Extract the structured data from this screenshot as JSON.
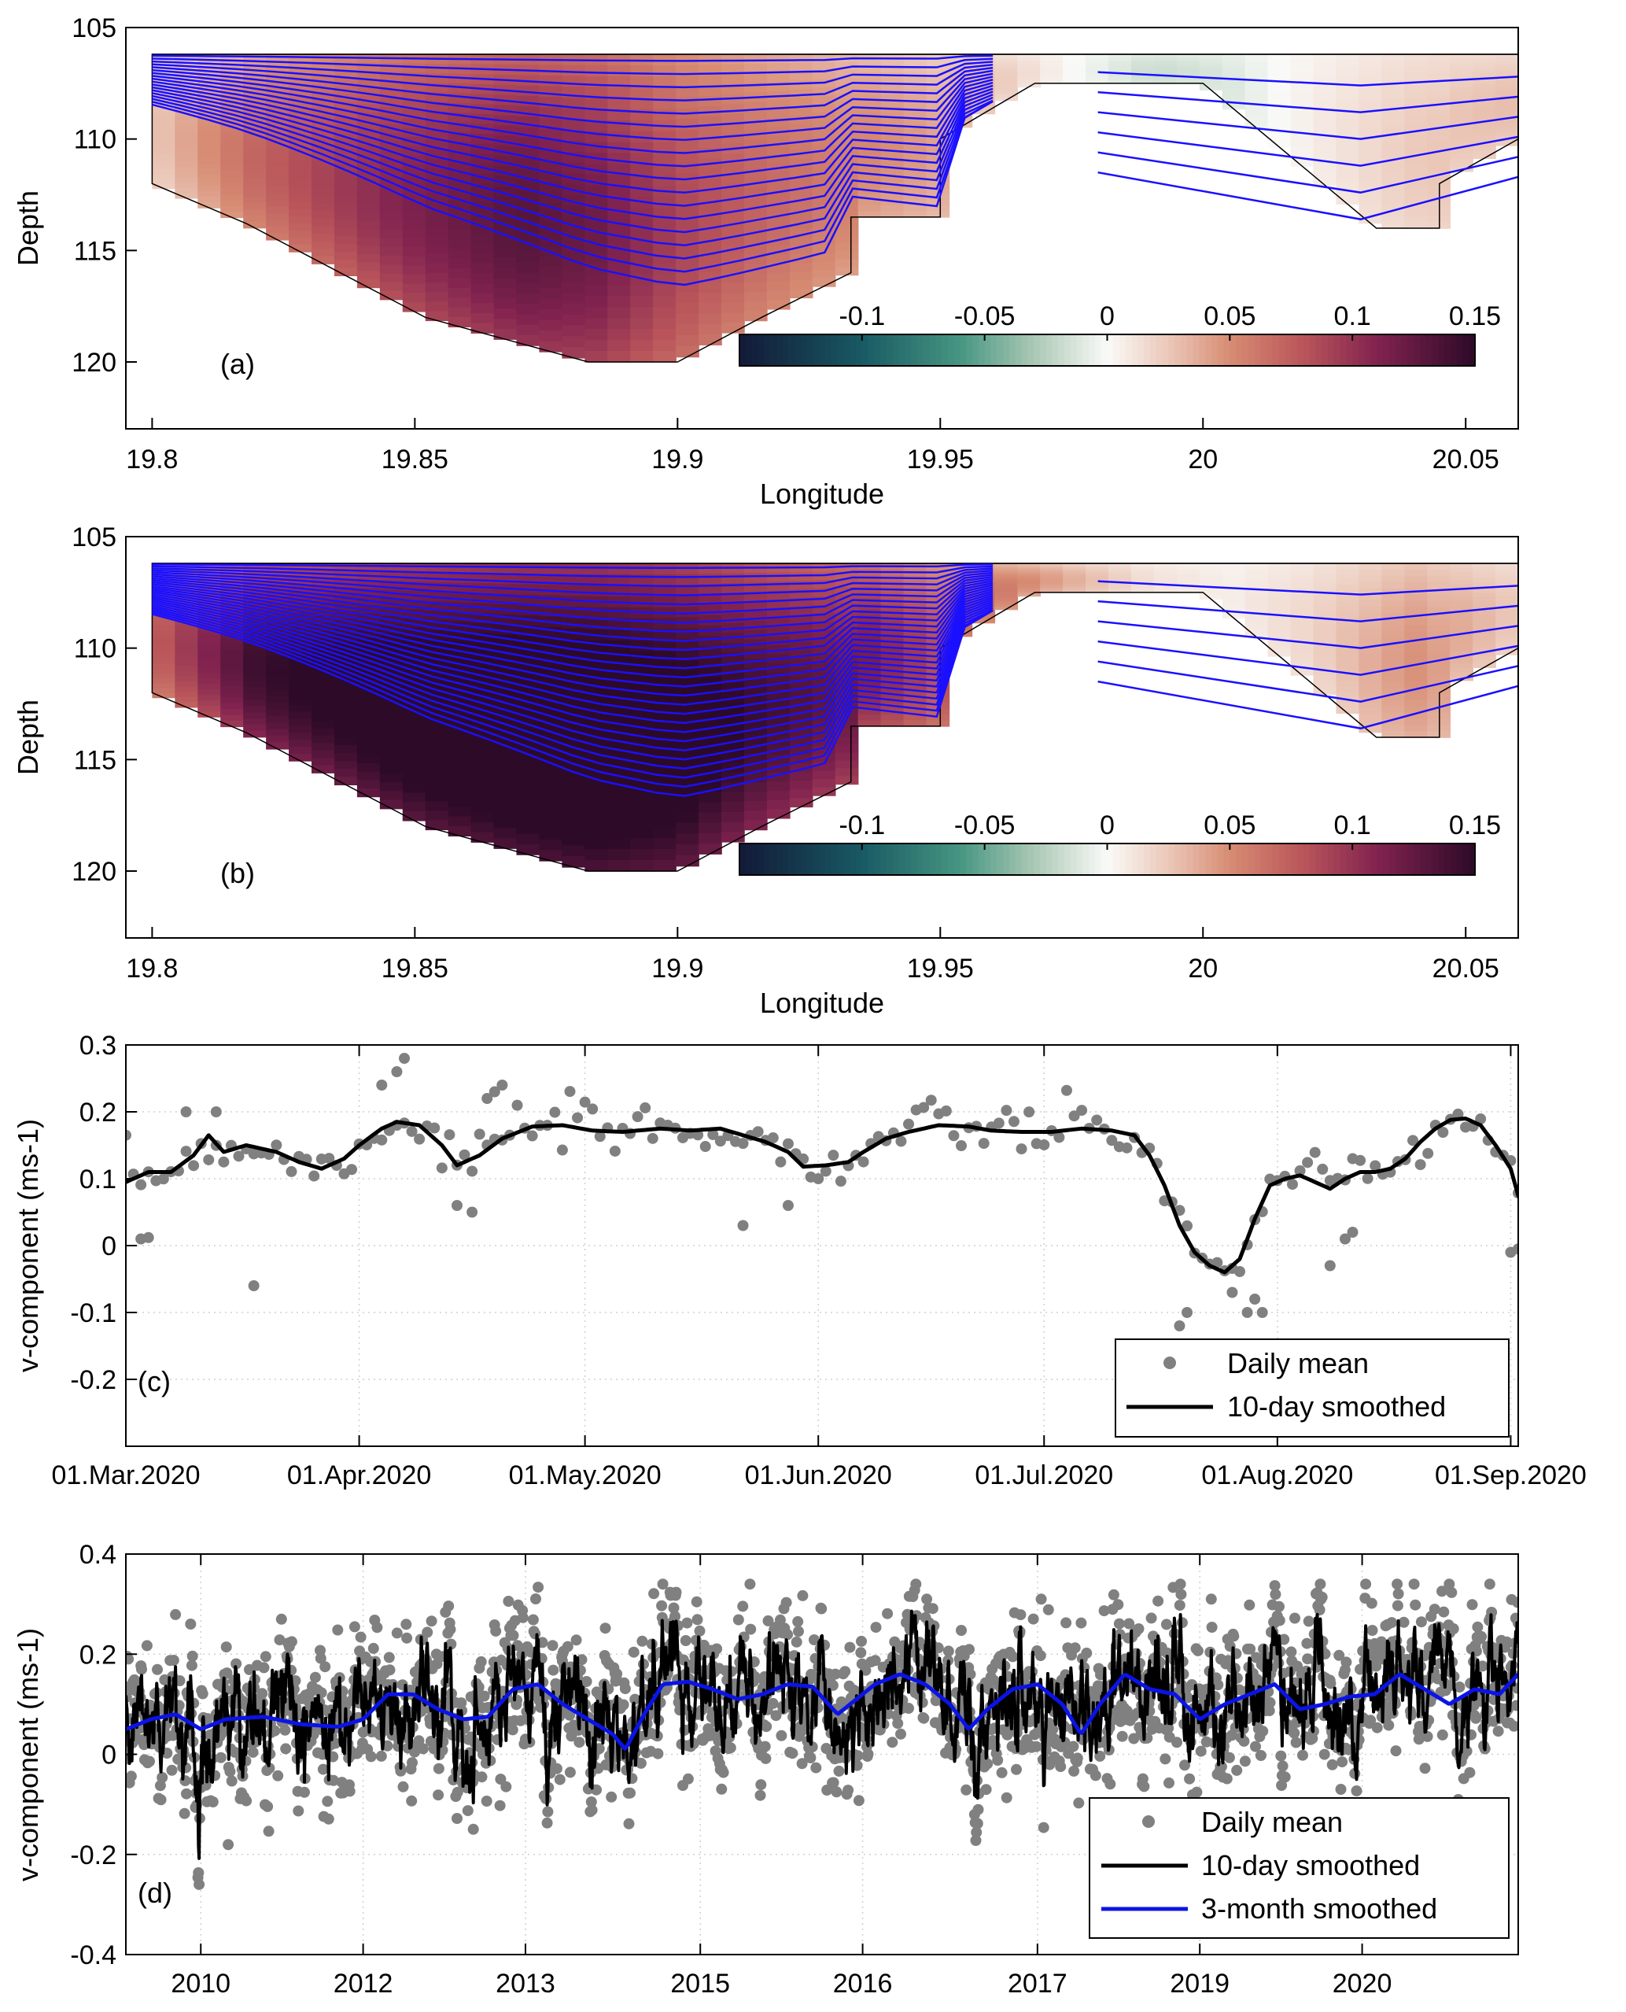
{
  "colors": {
    "contour_line": "#1a10ff",
    "smooth10": "#000000",
    "smooth3m": "#0a14e6",
    "daily": "#808080",
    "grid": "#d0d0d0"
  },
  "chart_data": [
    {
      "id": "a",
      "type": "heatmap",
      "panel_label": "(a)",
      "xlabel": "Longitude",
      "ylabel": "Depth",
      "xlim": [
        19.795,
        20.06
      ],
      "ylim": [
        105,
        123
      ],
      "xticks": [
        "19.8",
        "19.85",
        "19.9",
        "19.95",
        "20",
        "20.05"
      ],
      "xtick_values": [
        19.8,
        19.85,
        19.9,
        19.95,
        20.0,
        20.05
      ],
      "yticks": [
        "105",
        "110",
        "115",
        "120"
      ],
      "ytick_values": [
        105,
        110,
        115,
        120
      ],
      "colorbar": {
        "range": [
          -0.15,
          0.15
        ],
        "ticks": [
          "-0.1",
          "-0.05",
          "0",
          "0.05",
          "0.1",
          "0.15"
        ],
        "tick_values": [
          -0.1,
          -0.05,
          0,
          0.05,
          0.1,
          0.15
        ]
      },
      "bathymetry": [
        [
          19.8,
          112
        ],
        [
          19.818,
          113.8
        ],
        [
          19.852,
          118
        ],
        [
          19.883,
          120
        ],
        [
          19.9,
          120
        ],
        [
          19.916,
          118
        ],
        [
          19.933,
          116
        ],
        [
          19.933,
          113.5
        ],
        [
          19.95,
          113.5
        ],
        [
          19.95,
          110
        ],
        [
          19.968,
          107.5
        ],
        [
          20.0,
          107.5
        ],
        [
          20.033,
          114
        ],
        [
          20.045,
          114
        ],
        [
          20.045,
          112
        ],
        [
          20.06,
          110
        ]
      ],
      "field": [
        {
          "lon": 19.8,
          "v": 0.02
        },
        {
          "lon": 19.82,
          "v": 0.06
        },
        {
          "lon": 19.845,
          "v": 0.09
        },
        {
          "lon": 19.87,
          "v": 0.11
        },
        {
          "lon": 19.885,
          "v": 0.1
        },
        {
          "lon": 19.9,
          "v": 0.075
        },
        {
          "lon": 19.915,
          "v": 0.06
        },
        {
          "lon": 19.935,
          "v": 0.045
        },
        {
          "lon": 19.955,
          "v": 0.03
        },
        {
          "lon": 19.975,
          "v": 0.0
        },
        {
          "lon": 19.99,
          "v": -0.015
        },
        {
          "lon": 20.005,
          "v": -0.01
        },
        {
          "lon": 20.02,
          "v": 0.005
        },
        {
          "lon": 20.04,
          "v": 0.02
        },
        {
          "lon": 20.06,
          "v": 0.025
        }
      ],
      "streamline_count": 18
    },
    {
      "id": "b",
      "type": "heatmap",
      "panel_label": "(b)",
      "xlabel": "Longitude",
      "ylabel": "Depth",
      "xlim": [
        19.795,
        20.06
      ],
      "ylim": [
        105,
        123
      ],
      "xticks": [
        "19.8",
        "19.85",
        "19.9",
        "19.95",
        "20",
        "20.05"
      ],
      "xtick_values": [
        19.8,
        19.85,
        19.9,
        19.95,
        20.0,
        20.05
      ],
      "yticks": [
        "105",
        "110",
        "115",
        "120"
      ],
      "ytick_values": [
        105,
        110,
        115,
        120
      ],
      "colorbar": {
        "range": [
          -0.15,
          0.15
        ],
        "ticks": [
          "-0.1",
          "-0.05",
          "0",
          "0.05",
          "0.1",
          "0.15"
        ],
        "tick_values": [
          -0.1,
          -0.05,
          0,
          0.05,
          0.1,
          0.15
        ]
      },
      "bathymetry": [
        [
          19.8,
          112
        ],
        [
          19.818,
          113.8
        ],
        [
          19.852,
          118
        ],
        [
          19.883,
          120
        ],
        [
          19.9,
          120
        ],
        [
          19.916,
          118
        ],
        [
          19.933,
          116
        ],
        [
          19.933,
          113.5
        ],
        [
          19.95,
          113.5
        ],
        [
          19.95,
          110
        ],
        [
          19.968,
          107.5
        ],
        [
          20.0,
          107.5
        ],
        [
          20.033,
          114
        ],
        [
          20.045,
          114
        ],
        [
          20.045,
          112
        ],
        [
          20.06,
          110
        ]
      ],
      "field": [
        {
          "lon": 19.8,
          "v": 0.06
        },
        {
          "lon": 19.82,
          "v": 0.12
        },
        {
          "lon": 19.845,
          "v": 0.14
        },
        {
          "lon": 19.87,
          "v": 0.15
        },
        {
          "lon": 19.885,
          "v": 0.15
        },
        {
          "lon": 19.9,
          "v": 0.14
        },
        {
          "lon": 19.915,
          "v": 0.12
        },
        {
          "lon": 19.935,
          "v": 0.1
        },
        {
          "lon": 19.955,
          "v": 0.06
        },
        {
          "lon": 19.975,
          "v": 0.03
        },
        {
          "lon": 19.99,
          "v": 0.01
        },
        {
          "lon": 20.005,
          "v": 0.005
        },
        {
          "lon": 20.02,
          "v": 0.015
        },
        {
          "lon": 20.04,
          "v": 0.04
        },
        {
          "lon": 20.06,
          "v": 0.02
        }
      ],
      "streamline_count": 26
    },
    {
      "id": "c",
      "type": "line",
      "panel_label": "(c)",
      "ylabel": "v-component (ms-1)",
      "xlim": [
        0,
        185
      ],
      "ylim": [
        -0.3,
        0.3
      ],
      "xticks": [
        "01.Mar.2020",
        "01.Apr.2020",
        "01.May.2020",
        "01.Jun.2020",
        "01.Jul.2020",
        "01.Aug.2020",
        "01.Sep.2020"
      ],
      "xtick_values": [
        0,
        31,
        61,
        92,
        122,
        153,
        184
      ],
      "yticks": [
        "0.3",
        "0.2",
        "0.1",
        "0",
        "-0.1",
        "-0.2"
      ],
      "ytick_values": [
        0.3,
        0.2,
        0.1,
        0,
        -0.1,
        -0.2
      ],
      "legend": [
        "Daily mean",
        "10-day smoothed"
      ],
      "legend_position": "bottom-right",
      "smooth_knots": [
        [
          0,
          0.095
        ],
        [
          3,
          0.11
        ],
        [
          6,
          0.11
        ],
        [
          9,
          0.135
        ],
        [
          11,
          0.165
        ],
        [
          13,
          0.14
        ],
        [
          16,
          0.15
        ],
        [
          20,
          0.14
        ],
        [
          23,
          0.125
        ],
        [
          26,
          0.115
        ],
        [
          29,
          0.13
        ],
        [
          31,
          0.15
        ],
        [
          34,
          0.175
        ],
        [
          36,
          0.185
        ],
        [
          39,
          0.18
        ],
        [
          42,
          0.15
        ],
        [
          44,
          0.12
        ],
        [
          47,
          0.135
        ],
        [
          50,
          0.16
        ],
        [
          54,
          0.178
        ],
        [
          58,
          0.18
        ],
        [
          62,
          0.172
        ],
        [
          66,
          0.17
        ],
        [
          71,
          0.175
        ],
        [
          75,
          0.172
        ],
        [
          79,
          0.175
        ],
        [
          82,
          0.165
        ],
        [
          85,
          0.155
        ],
        [
          88,
          0.14
        ],
        [
          90,
          0.118
        ],
        [
          93,
          0.12
        ],
        [
          96,
          0.125
        ],
        [
          98,
          0.14
        ],
        [
          101,
          0.16
        ],
        [
          104,
          0.17
        ],
        [
          108,
          0.18
        ],
        [
          112,
          0.178
        ],
        [
          115,
          0.172
        ],
        [
          119,
          0.17
        ],
        [
          123,
          0.17
        ],
        [
          127,
          0.175
        ],
        [
          131,
          0.172
        ],
        [
          134,
          0.165
        ],
        [
          136,
          0.135
        ],
        [
          138,
          0.09
        ],
        [
          140,
          0.03
        ],
        [
          142,
          -0.01
        ],
        [
          144,
          -0.03
        ],
        [
          146,
          -0.04
        ],
        [
          148,
          -0.02
        ],
        [
          150,
          0.04
        ],
        [
          152,
          0.09
        ],
        [
          154,
          0.1
        ],
        [
          156,
          0.105
        ],
        [
          158,
          0.095
        ],
        [
          160,
          0.085
        ],
        [
          162,
          0.1
        ],
        [
          164,
          0.11
        ],
        [
          166,
          0.11
        ],
        [
          168,
          0.115
        ],
        [
          170,
          0.13
        ],
        [
          172,
          0.155
        ],
        [
          174,
          0.175
        ],
        [
          176,
          0.188
        ],
        [
          178,
          0.19
        ],
        [
          180,
          0.18
        ],
        [
          182,
          0.15
        ],
        [
          184,
          0.115
        ],
        [
          185,
          0.075
        ],
        [
          186,
          0.055
        ]
      ],
      "daily_outliers": [
        [
          17,
          -0.06
        ],
        [
          36,
          0.26
        ],
        [
          37,
          0.28
        ],
        [
          34,
          0.24
        ],
        [
          46,
          0.05
        ],
        [
          44,
          0.06
        ],
        [
          48,
          0.22
        ],
        [
          49,
          0.23
        ],
        [
          50,
          0.24
        ],
        [
          82,
          0.03
        ],
        [
          88,
          0.06
        ],
        [
          140,
          -0.12
        ],
        [
          141,
          -0.1
        ],
        [
          147,
          -0.07
        ],
        [
          149,
          -0.1
        ],
        [
          150,
          -0.08
        ],
        [
          151,
          -0.1
        ],
        [
          160,
          -0.03
        ],
        [
          162,
          0.01
        ],
        [
          163,
          0.02
        ],
        [
          184,
          -0.01
        ],
        [
          185,
          -0.005
        ],
        [
          186,
          0.005
        ],
        [
          2,
          0.01
        ],
        [
          3,
          0.012
        ],
        [
          12,
          0.2
        ],
        [
          8,
          0.2
        ]
      ]
    },
    {
      "id": "d",
      "type": "line",
      "panel_label": "(d)",
      "ylabel": "v-component (ms-1)",
      "xlim": [
        2009.2,
        2020.35
      ],
      "ylim": [
        -0.4,
        0.4
      ],
      "xticks": [
        "2010",
        "2012",
        "2013",
        "2015",
        "2016",
        "2017",
        "2019",
        "2020"
      ],
      "xtick_values": [
        2009.8,
        2011.1,
        2012.4,
        2013.8,
        2015.1,
        2016.5,
        2017.8,
        2019.1
      ],
      "yticks": [
        "0.4",
        "0.2",
        "0",
        "-0.2",
        "-0.4"
      ],
      "ytick_values": [
        0.4,
        0.2,
        0,
        -0.2,
        -0.4
      ],
      "legend": [
        "Daily mean",
        "10-day smoothed",
        "3-month smoothed"
      ],
      "legend_position": "bottom-right",
      "smooth3m_knots": [
        [
          2009.2,
          0.05
        ],
        [
          2009.4,
          0.07
        ],
        [
          2009.6,
          0.08
        ],
        [
          2009.8,
          0.05
        ],
        [
          2010.0,
          0.07
        ],
        [
          2010.3,
          0.075
        ],
        [
          2010.6,
          0.06
        ],
        [
          2010.9,
          0.055
        ],
        [
          2011.1,
          0.07
        ],
        [
          2011.3,
          0.12
        ],
        [
          2011.5,
          0.12
        ],
        [
          2011.7,
          0.09
        ],
        [
          2011.9,
          0.07
        ],
        [
          2012.1,
          0.075
        ],
        [
          2012.3,
          0.13
        ],
        [
          2012.5,
          0.14
        ],
        [
          2012.7,
          0.1
        ],
        [
          2012.9,
          0.07
        ],
        [
          2013.1,
          0.04
        ],
        [
          2013.2,
          0.01
        ],
        [
          2013.35,
          0.08
        ],
        [
          2013.5,
          0.14
        ],
        [
          2013.7,
          0.145
        ],
        [
          2013.9,
          0.13
        ],
        [
          2014.1,
          0.11
        ],
        [
          2014.3,
          0.12
        ],
        [
          2014.5,
          0.14
        ],
        [
          2014.7,
          0.135
        ],
        [
          2014.9,
          0.08
        ],
        [
          2015.0,
          0.1
        ],
        [
          2015.2,
          0.14
        ],
        [
          2015.4,
          0.16
        ],
        [
          2015.6,
          0.14
        ],
        [
          2015.8,
          0.1
        ],
        [
          2015.95,
          0.05
        ],
        [
          2016.1,
          0.09
        ],
        [
          2016.3,
          0.13
        ],
        [
          2016.5,
          0.14
        ],
        [
          2016.7,
          0.1
        ],
        [
          2016.85,
          0.04
        ],
        [
          2017.0,
          0.1
        ],
        [
          2017.2,
          0.16
        ],
        [
          2017.4,
          0.13
        ],
        [
          2017.6,
          0.12
        ],
        [
          2017.8,
          0.07
        ],
        [
          2018.0,
          0.1
        ],
        [
          2018.2,
          0.12
        ],
        [
          2018.4,
          0.14
        ],
        [
          2018.6,
          0.09
        ],
        [
          2018.8,
          0.1
        ],
        [
          2019.0,
          0.115
        ],
        [
          2019.2,
          0.12
        ],
        [
          2019.4,
          0.16
        ],
        [
          2019.6,
          0.13
        ],
        [
          2019.8,
          0.1
        ],
        [
          2020.0,
          0.13
        ],
        [
          2020.2,
          0.12
        ],
        [
          2020.35,
          0.16
        ]
      ]
    }
  ]
}
